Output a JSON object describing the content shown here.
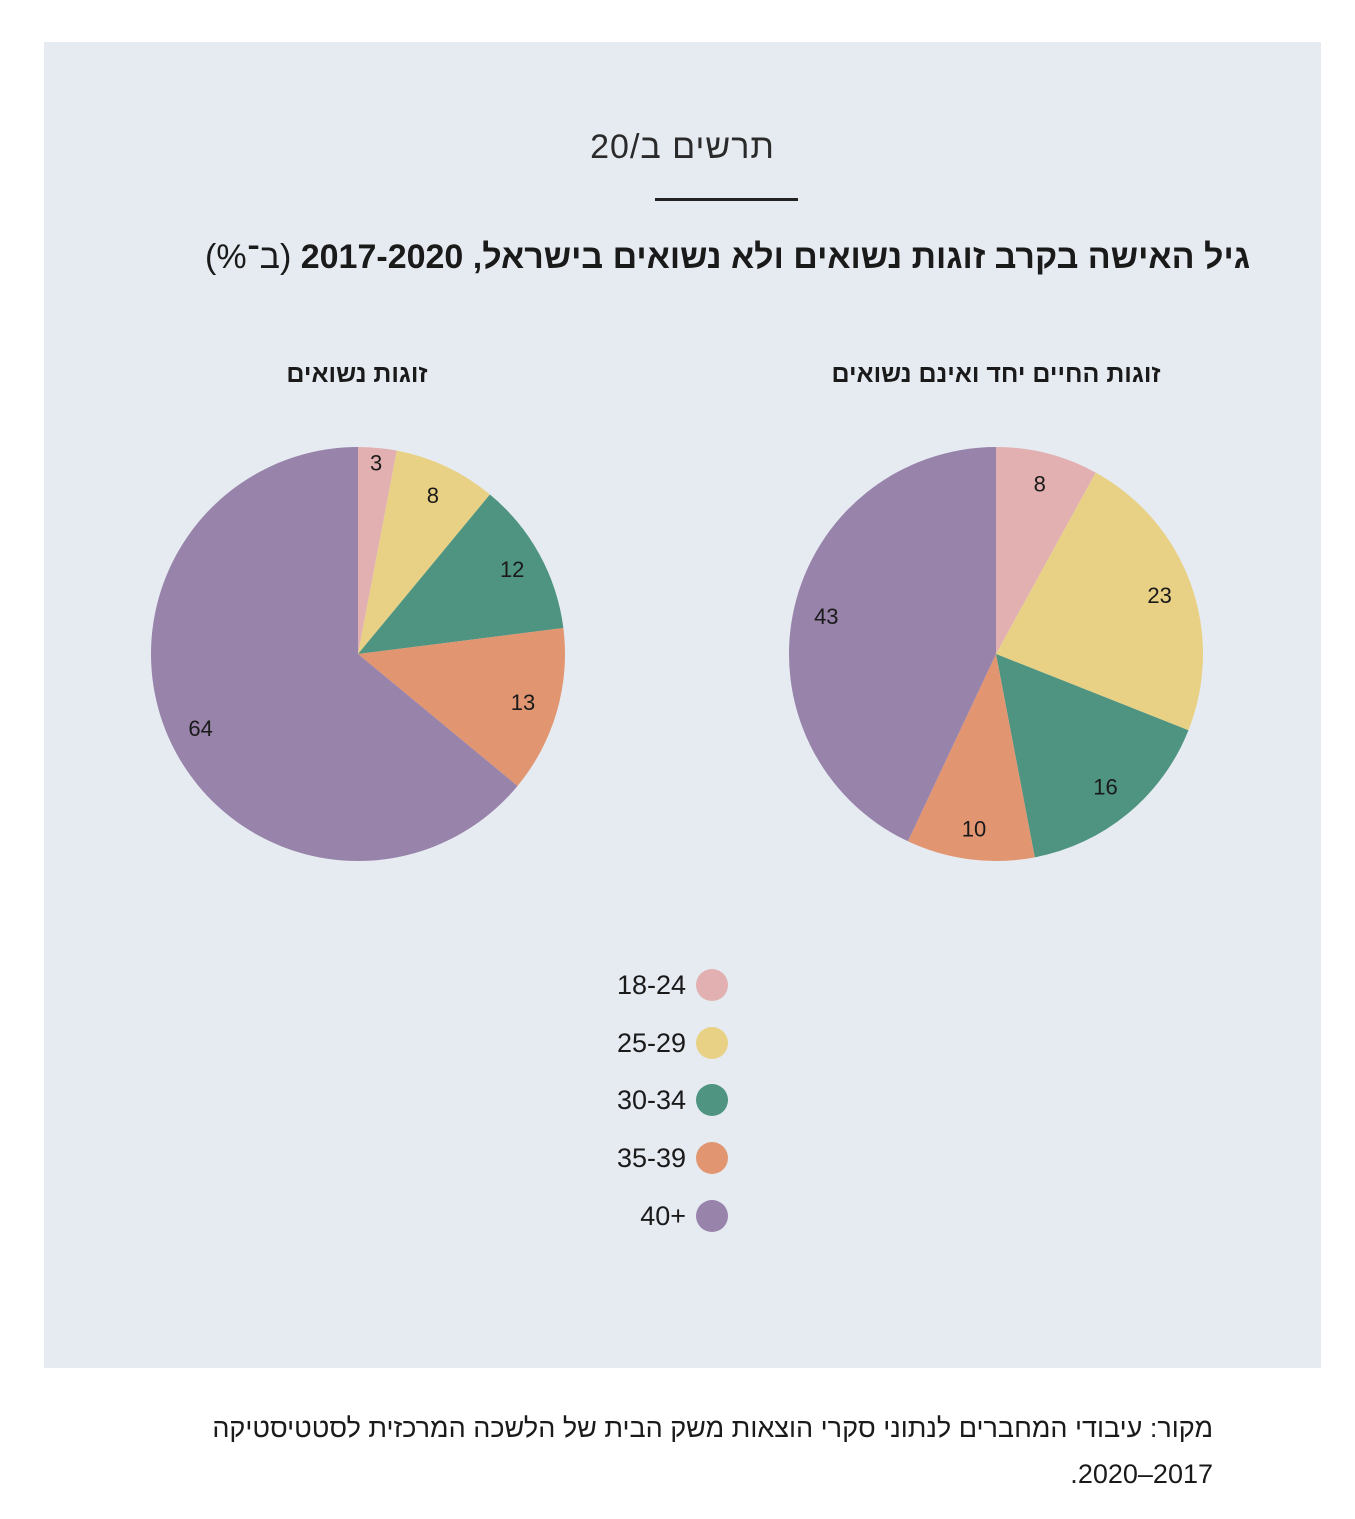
{
  "header": {
    "title": "תרשים ב/20"
  },
  "chart_title": {
    "main": "גיל האישה בקרב זוגות נשואים ולא נשואים בישראל, 2017-2020",
    "unit": " (ב־%)"
  },
  "colors": {
    "background": "#e6ebf2",
    "18-24": "#e2b0b0",
    "25-29": "#e8d184",
    "30-34": "#4e9480",
    "35-39": "#e19570",
    "40+": "#9883aa"
  },
  "legend": [
    {
      "label": "18-24",
      "color": "#e2b0b0"
    },
    {
      "label": "25-29",
      "color": "#e8d184"
    },
    {
      "label": "30-34",
      "color": "#4e9480"
    },
    {
      "label": "35-39",
      "color": "#e19570"
    },
    {
      "label": "40+",
      "color": "#9883aa"
    }
  ],
  "chart_data": [
    {
      "type": "pie",
      "title": "זוגות החיים יחד ואינם נשואים",
      "categories": [
        "18-24",
        "25-29",
        "30-34",
        "35-39",
        "40+"
      ],
      "values": [
        8,
        23,
        16,
        10,
        43
      ],
      "colors": [
        "#e2b0b0",
        "#e8d184",
        "#4e9480",
        "#e19570",
        "#9883aa"
      ]
    },
    {
      "type": "pie",
      "title": "זוגות נשואים",
      "categories": [
        "18-24",
        "25-29",
        "30-34",
        "35-39",
        "40+"
      ],
      "values": [
        3,
        8,
        12,
        13,
        64
      ],
      "colors": [
        "#e2b0b0",
        "#e8d184",
        "#4e9480",
        "#e19570",
        "#9883aa"
      ]
    }
  ],
  "source": {
    "line1": "מקור: עיבודי המחברים לנתוני סקרי הוצאות משק הבית של הלשכה המרכזית לסטטיסטיקה",
    "line2": "2017–2020."
  }
}
